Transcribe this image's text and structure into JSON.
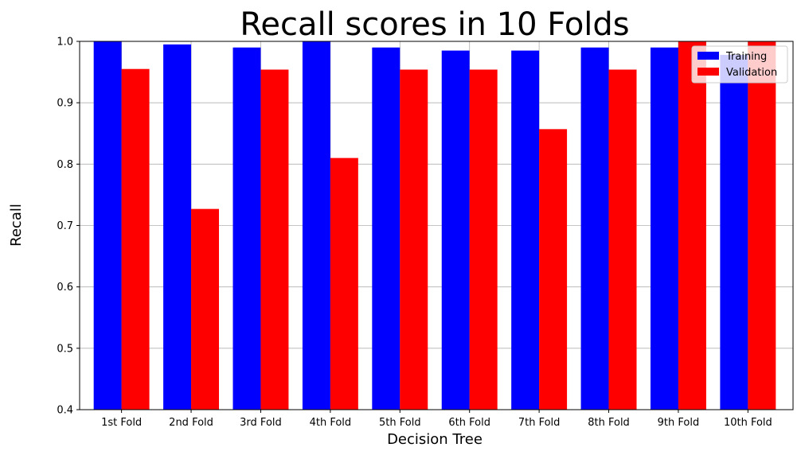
{
  "chart_data": {
    "type": "bar",
    "title": "Recall scores in 10 Folds",
    "xlabel": "Decision Tree",
    "ylabel": "Recall",
    "ylim": [
      0.4,
      1.0
    ],
    "yticks": [
      "0.4",
      "0.5",
      "0.6",
      "0.7",
      "0.8",
      "0.9",
      "1.0"
    ],
    "categories": [
      "1st Fold",
      "2nd Fold",
      "3rd Fold",
      "4th Fold",
      "5th Fold",
      "6th Fold",
      "7th Fold",
      "8th Fold",
      "9th Fold",
      "10th Fold"
    ],
    "series": [
      {
        "name": "Training",
        "color": "#0000ff",
        "values": [
          1.0,
          0.995,
          0.99,
          1.0,
          0.99,
          0.985,
          0.985,
          0.99,
          0.99,
          0.978
        ]
      },
      {
        "name": "Validation",
        "color": "#ff0000",
        "values": [
          0.955,
          0.727,
          0.954,
          0.81,
          0.954,
          0.954,
          0.857,
          0.954,
          1.0,
          1.0
        ]
      }
    ],
    "grid": true,
    "legend": "top-right"
  }
}
